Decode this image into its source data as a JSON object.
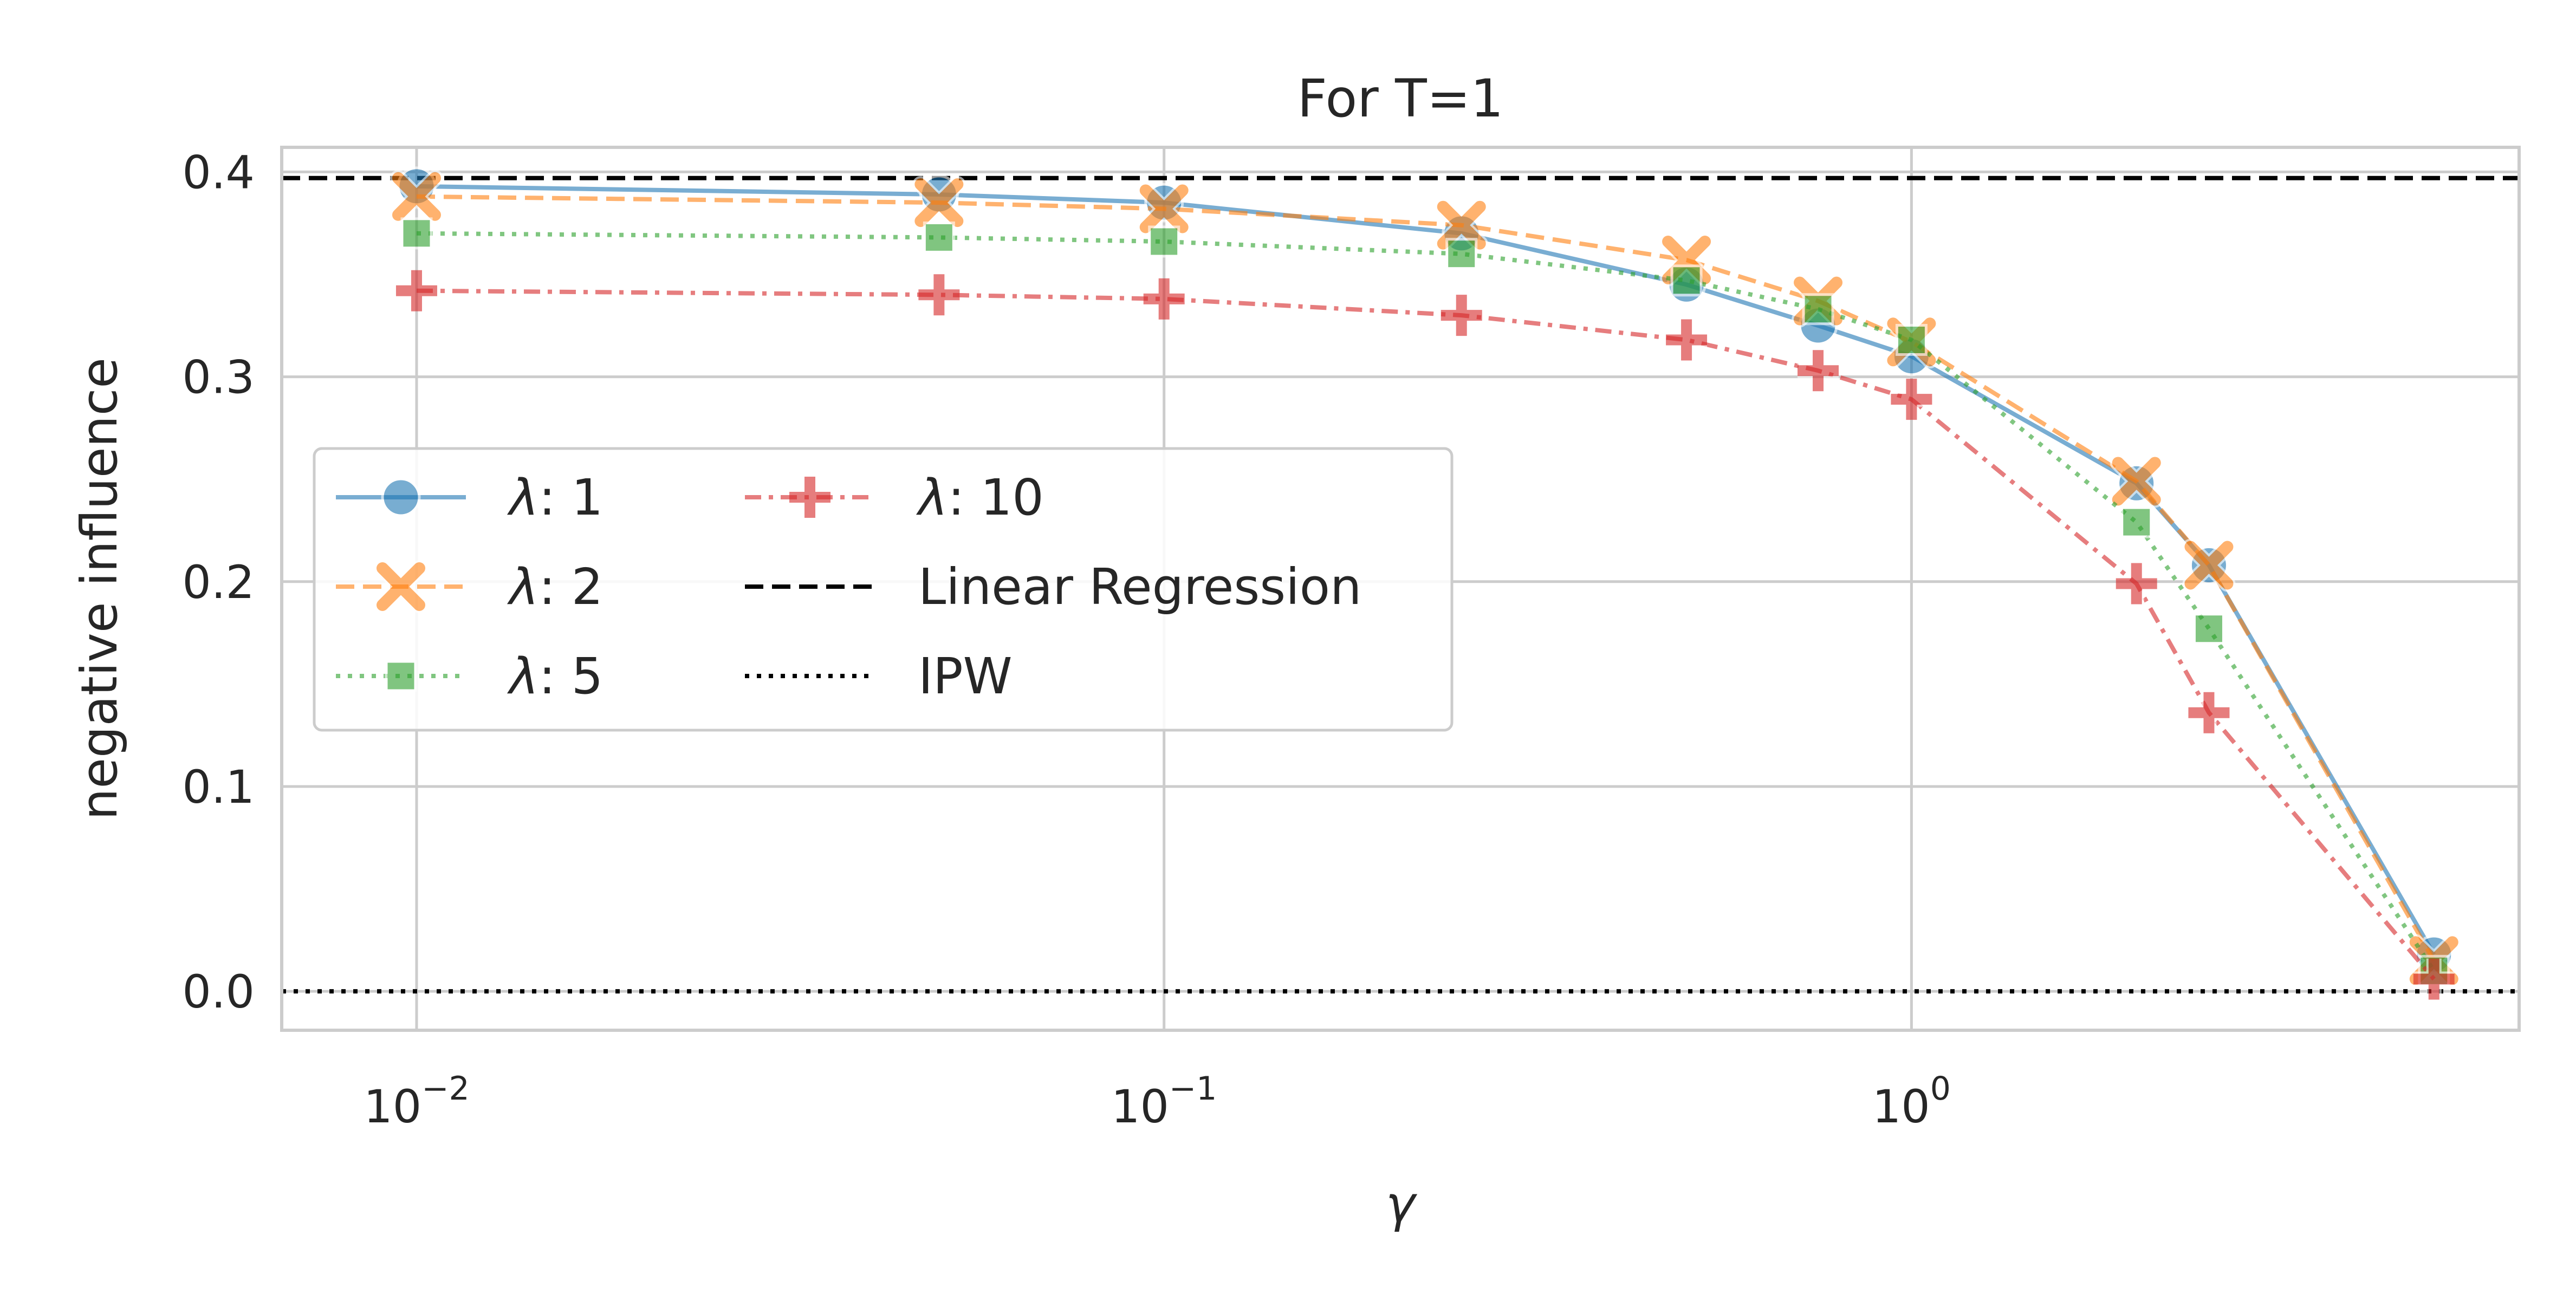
{
  "chart_data": {
    "type": "line",
    "title": "For T=1",
    "xlabel": "γ",
    "ylabel": "negative influence",
    "xscale": "log",
    "xlim": [
      0.0066,
      6.5
    ],
    "ylim": [
      -0.019,
      0.412
    ],
    "x": [
      0.01,
      0.05,
      0.1,
      0.25,
      0.5,
      0.75,
      1.0,
      2.0,
      2.5,
      5.0
    ],
    "series": [
      {
        "name": "λ: 1",
        "lambda": "1",
        "color": "#1f77b4",
        "marker": "circle",
        "linestyle": "solid",
        "values": [
          0.393,
          0.389,
          0.385,
          0.37,
          0.345,
          0.325,
          0.31,
          0.248,
          0.208,
          0.018
        ]
      },
      {
        "name": "λ: 2",
        "lambda": "2",
        "color": "#ff7f0e",
        "marker": "x",
        "linestyle": "dashed",
        "values": [
          0.388,
          0.385,
          0.382,
          0.374,
          0.357,
          0.337,
          0.317,
          0.249,
          0.208,
          0.015
        ]
      },
      {
        "name": "λ: 5",
        "lambda": "5",
        "color": "#2ca02c",
        "marker": "square",
        "linestyle": "dotted",
        "values": [
          0.37,
          0.368,
          0.366,
          0.36,
          0.347,
          0.333,
          0.318,
          0.229,
          0.177,
          0.01
        ]
      },
      {
        "name": "λ: 10",
        "lambda": "10",
        "color": "#d62728",
        "marker": "plus",
        "linestyle": "dashdot",
        "values": [
          0.342,
          0.34,
          0.338,
          0.33,
          0.318,
          0.303,
          0.289,
          0.199,
          0.136,
          0.006
        ]
      }
    ],
    "reference_lines": [
      {
        "name": "Linear Regression",
        "y": 0.397,
        "color": "#000000",
        "linestyle": "dashed"
      },
      {
        "name": "IPW",
        "y": 0.0,
        "color": "#000000",
        "linestyle": "dotted"
      }
    ],
    "yticks": [
      0.0,
      0.1,
      0.2,
      0.3,
      0.4
    ],
    "ytick_labels": [
      "0.0",
      "0.1",
      "0.2",
      "0.3",
      "0.4"
    ],
    "xticks": [
      0.01,
      0.1,
      1
    ],
    "xtick_labels": [
      {
        "base": "10",
        "exp": "−2"
      },
      {
        "base": "10",
        "exp": "−1"
      },
      {
        "base": "10",
        "exp": "0"
      }
    ],
    "legend": {
      "location": "center-left",
      "columns": 2
    },
    "grid": true
  }
}
